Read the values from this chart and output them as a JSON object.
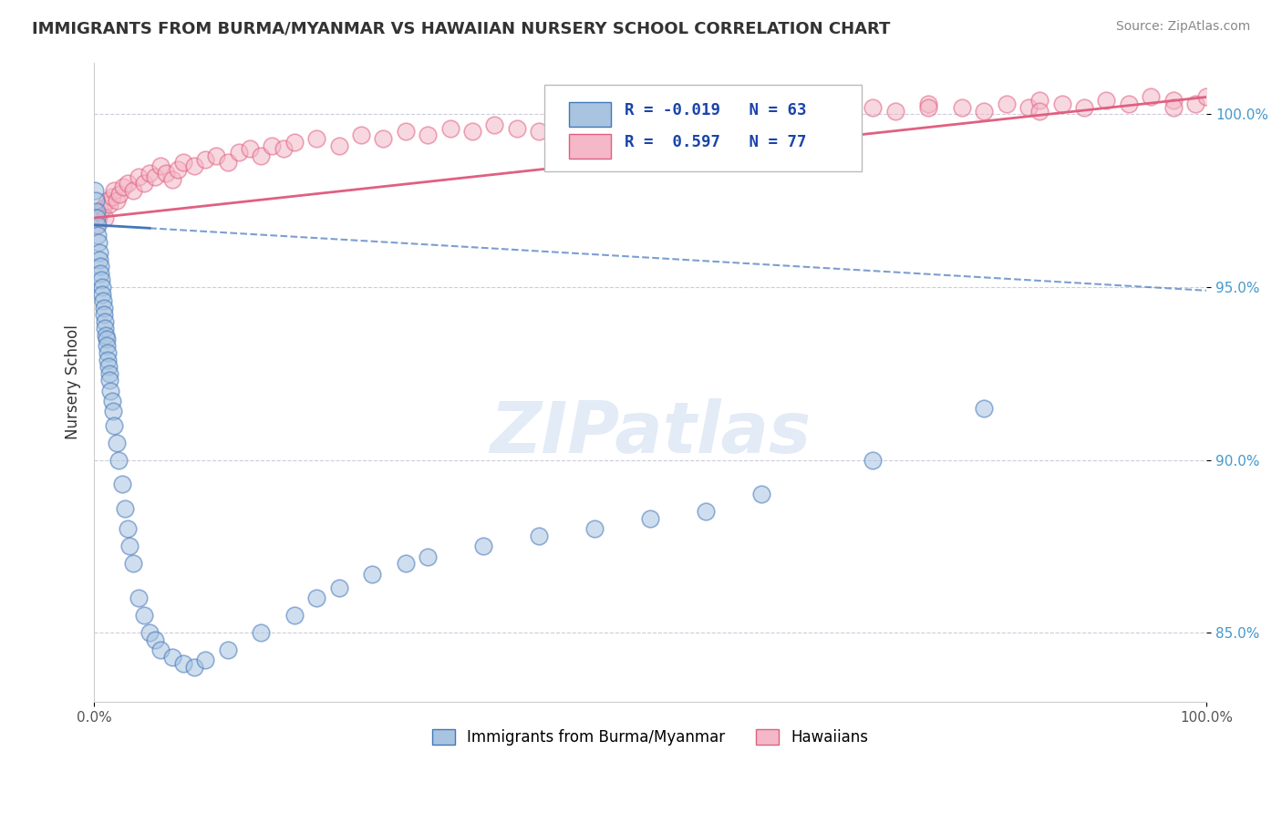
{
  "title": "IMMIGRANTS FROM BURMA/MYANMAR VS HAWAIIAN NURSERY SCHOOL CORRELATION CHART",
  "source": "Source: ZipAtlas.com",
  "ylabel": "Nursery School",
  "legend_label_blue": "Immigrants from Burma/Myanmar",
  "legend_label_pink": "Hawaiians",
  "R_blue": -0.019,
  "N_blue": 63,
  "R_pink": 0.597,
  "N_pink": 77,
  "color_blue": "#a8c4e0",
  "color_pink": "#f4b8c8",
  "color_line_blue": "#4477bb",
  "color_line_pink": "#e06080",
  "blue_scatter_x": [
    0.1,
    0.15,
    0.2,
    0.25,
    0.3,
    0.35,
    0.4,
    0.45,
    0.5,
    0.55,
    0.6,
    0.65,
    0.7,
    0.75,
    0.8,
    0.85,
    0.9,
    0.95,
    1.0,
    1.05,
    1.1,
    1.15,
    1.2,
    1.25,
    1.3,
    1.35,
    1.4,
    1.5,
    1.6,
    1.7,
    1.8,
    2.0,
    2.2,
    2.5,
    2.8,
    3.0,
    3.2,
    3.5,
    4.0,
    4.5,
    5.0,
    5.5,
    6.0,
    7.0,
    8.0,
    9.0,
    10.0,
    12.0,
    15.0,
    18.0,
    20.0,
    22.0,
    25.0,
    28.0,
    30.0,
    35.0,
    40.0,
    45.0,
    50.0,
    55.0,
    60.0,
    70.0,
    80.0
  ],
  "blue_scatter_y": [
    97.8,
    97.5,
    97.2,
    97.0,
    96.8,
    96.5,
    96.3,
    96.0,
    95.8,
    95.6,
    95.4,
    95.2,
    95.0,
    94.8,
    94.6,
    94.4,
    94.2,
    94.0,
    93.8,
    93.6,
    93.5,
    93.3,
    93.1,
    92.9,
    92.7,
    92.5,
    92.3,
    92.0,
    91.7,
    91.4,
    91.0,
    90.5,
    90.0,
    89.3,
    88.6,
    88.0,
    87.5,
    87.0,
    86.0,
    85.5,
    85.0,
    84.8,
    84.5,
    84.3,
    84.1,
    84.0,
    84.2,
    84.5,
    85.0,
    85.5,
    86.0,
    86.3,
    86.7,
    87.0,
    87.2,
    87.5,
    87.8,
    88.0,
    88.3,
    88.5,
    89.0,
    90.0,
    91.5
  ],
  "pink_scatter_x": [
    0.2,
    0.4,
    0.6,
    0.8,
    1.0,
    1.2,
    1.4,
    1.6,
    1.8,
    2.0,
    2.3,
    2.6,
    3.0,
    3.5,
    4.0,
    4.5,
    5.0,
    5.5,
    6.0,
    6.5,
    7.0,
    7.5,
    8.0,
    9.0,
    10.0,
    11.0,
    12.0,
    13.0,
    14.0,
    15.0,
    16.0,
    17.0,
    18.0,
    20.0,
    22.0,
    24.0,
    26.0,
    28.0,
    30.0,
    32.0,
    34.0,
    36.0,
    38.0,
    40.0,
    42.0,
    44.0,
    46.0,
    48.0,
    50.0,
    52.0,
    54.0,
    56.0,
    58.0,
    60.0,
    62.0,
    65.0,
    68.0,
    70.0,
    72.0,
    75.0,
    78.0,
    80.0,
    82.0,
    84.0,
    85.0,
    87.0,
    89.0,
    91.0,
    93.0,
    95.0,
    97.0,
    99.0,
    100.0,
    55.0,
    75.0,
    85.0,
    97.0
  ],
  "pink_scatter_y": [
    96.8,
    97.0,
    97.2,
    97.3,
    97.0,
    97.5,
    97.4,
    97.6,
    97.8,
    97.5,
    97.7,
    97.9,
    98.0,
    97.8,
    98.2,
    98.0,
    98.3,
    98.2,
    98.5,
    98.3,
    98.1,
    98.4,
    98.6,
    98.5,
    98.7,
    98.8,
    98.6,
    98.9,
    99.0,
    98.8,
    99.1,
    99.0,
    99.2,
    99.3,
    99.1,
    99.4,
    99.3,
    99.5,
    99.4,
    99.6,
    99.5,
    99.7,
    99.6,
    99.5,
    99.8,
    99.7,
    99.9,
    99.8,
    99.6,
    99.9,
    100.0,
    99.8,
    100.1,
    100.0,
    100.2,
    100.1,
    100.0,
    100.2,
    100.1,
    100.3,
    100.2,
    100.1,
    100.3,
    100.2,
    100.4,
    100.3,
    100.2,
    100.4,
    100.3,
    100.5,
    100.4,
    100.3,
    100.5,
    99.7,
    100.2,
    100.1,
    100.2
  ],
  "blue_line_x0": 0.0,
  "blue_line_x1": 100.0,
  "blue_line_y0": 96.8,
  "blue_line_y1": 94.9,
  "blue_solid_x1": 5.0,
  "pink_line_x0": 0.0,
  "pink_line_x1": 100.0,
  "pink_line_y0": 97.0,
  "pink_line_y1": 100.5,
  "ytick_vals": [
    85.0,
    90.0,
    95.0,
    100.0
  ],
  "ytick_labels": [
    "85.0%",
    "90.0%",
    "95.0%",
    "100.0%"
  ],
  "ylim_min": 83.0,
  "ylim_max": 101.5,
  "xlim_min": 0.0,
  "xlim_max": 100.0
}
